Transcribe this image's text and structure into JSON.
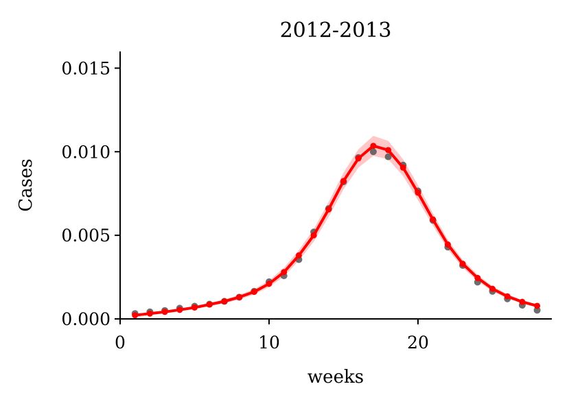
{
  "chart_data": {
    "type": "line",
    "title": "2012-2013",
    "xlabel": "weeks",
    "ylabel": "Cases",
    "xlim": [
      0,
      29
    ],
    "ylim": [
      0,
      0.016
    ],
    "xticks": [
      {
        "value": 0,
        "label": "0"
      },
      {
        "value": 10,
        "label": "10"
      },
      {
        "value": 20,
        "label": "20"
      }
    ],
    "yticks": [
      {
        "value": 0.0,
        "label": "0.000"
      },
      {
        "value": 0.005,
        "label": "0.005"
      },
      {
        "value": 0.01,
        "label": "0.010"
      },
      {
        "value": 0.015,
        "label": "0.015"
      }
    ],
    "grid": false,
    "legend": "none",
    "series": [
      {
        "style": "observed-points",
        "color": "#555555",
        "x": [
          1,
          2,
          3,
          4,
          5,
          6,
          7,
          8,
          9,
          10,
          11,
          12,
          13,
          14,
          15,
          16,
          17,
          18,
          19,
          20,
          21,
          22,
          23,
          24,
          25,
          26,
          27,
          28
        ],
        "y": [
          0.00032,
          0.00042,
          0.0005,
          0.00064,
          0.00076,
          0.00088,
          0.00105,
          0.0013,
          0.00165,
          0.00222,
          0.00258,
          0.00355,
          0.0052,
          0.0066,
          0.0082,
          0.00965,
          0.01,
          0.0097,
          0.0092,
          0.00765,
          0.0059,
          0.0043,
          0.0032,
          0.0022,
          0.00165,
          0.0012,
          0.00082,
          0.00052
        ]
      },
      {
        "style": "model-line",
        "color": "#ff0000",
        "x": [
          1,
          2,
          3,
          4,
          5,
          6,
          7,
          8,
          9,
          10,
          11,
          12,
          13,
          14,
          15,
          16,
          17,
          18,
          19,
          20,
          21,
          22,
          23,
          24,
          25,
          26,
          27,
          28
        ],
        "y": [
          0.00022,
          0.00032,
          0.00042,
          0.00054,
          0.00068,
          0.00086,
          0.00105,
          0.0013,
          0.00162,
          0.0021,
          0.0028,
          0.0038,
          0.005,
          0.00655,
          0.00825,
          0.0096,
          0.01035,
          0.0101,
          0.00905,
          0.00755,
          0.00595,
          0.00445,
          0.0033,
          0.00245,
          0.0018,
          0.00135,
          0.00102,
          0.00078
        ],
        "band_low": [
          0.00018,
          0.00027,
          0.00036,
          0.00047,
          0.0006,
          0.00076,
          0.00094,
          0.00116,
          0.00146,
          0.0019,
          0.00254,
          0.00348,
          0.00462,
          0.0061,
          0.00775,
          0.00905,
          0.00975,
          0.00955,
          0.00855,
          0.0071,
          0.00558,
          0.00415,
          0.00306,
          0.00226,
          0.00164,
          0.00122,
          0.00091,
          0.00068
        ],
        "band_high": [
          0.00026,
          0.00037,
          0.00048,
          0.00061,
          0.00076,
          0.00096,
          0.00116,
          0.00144,
          0.00178,
          0.0023,
          0.00306,
          0.00412,
          0.00538,
          0.007,
          0.00875,
          0.01015,
          0.01095,
          0.01065,
          0.00955,
          0.008,
          0.00632,
          0.00475,
          0.00354,
          0.00264,
          0.00196,
          0.00148,
          0.00113,
          0.00088
        ]
      }
    ]
  }
}
